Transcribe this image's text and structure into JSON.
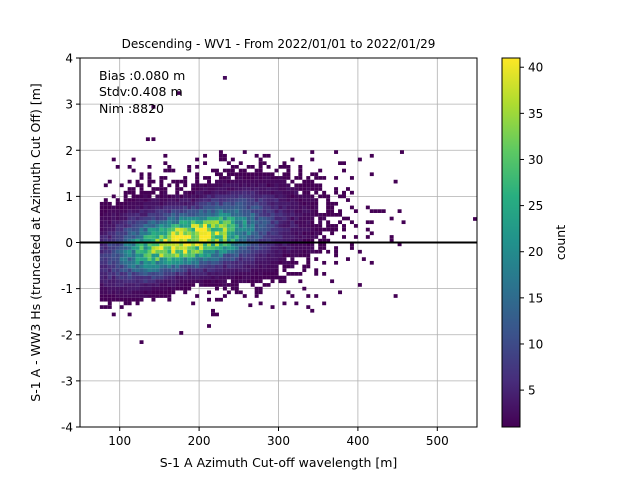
{
  "chart_data": {
    "type": "heatmap",
    "title": "Descending - WV1 - From 2022/01/01 to 2022/01/29",
    "xlabel": "S-1 A Azimuth Cut-off wavelength [m]",
    "ylabel": "S-1 A - WW3 Hs (truncated at Azimuth Cut Off) [m]",
    "xlim": [
      50,
      550
    ],
    "ylim": [
      -4,
      4
    ],
    "xticks": [
      "100",
      "200",
      "300",
      "400",
      "500"
    ],
    "yticks": [
      "-4",
      "-3",
      "-2",
      "-1",
      "0",
      "1",
      "2",
      "3",
      "4"
    ],
    "grid": true,
    "reference_line_y": 0,
    "stats": [
      "Bias :0.080 m",
      "Stdv:0.408 m",
      "Nim :8820"
    ],
    "colorbar": {
      "label": "count",
      "range": [
        1,
        41
      ],
      "ticks": [
        "5",
        "10",
        "15",
        "20",
        "25",
        "30",
        "35",
        "40"
      ],
      "colormap": "viridis"
    },
    "bins": {
      "x_bin_width_m": 5,
      "y_bin_width_m": 0.08,
      "peak": {
        "x": 185,
        "y": 0.05,
        "count": 41
      },
      "spread_x_m": 55,
      "spread_y_m": 0.45,
      "x_range": [
        75,
        460
      ],
      "y_range": [
        -1.6,
        2.0
      ],
      "outliers": [
        {
          "x": 230,
          "y": 3.53,
          "count": 2
        },
        {
          "x": 172,
          "y": 3.2,
          "count": 1
        },
        {
          "x": 140,
          "y": 2.9,
          "count": 1
        },
        {
          "x": 133,
          "y": 2.2,
          "count": 1
        },
        {
          "x": 140,
          "y": 2.2,
          "count": 1
        },
        {
          "x": 453,
          "y": 1.92,
          "count": 1
        },
        {
          "x": 545,
          "y": 0.47,
          "count": 1
        },
        {
          "x": 125,
          "y": -2.2,
          "count": 1
        },
        {
          "x": 175,
          "y": -2.0,
          "count": 1
        },
        {
          "x": 210,
          "y": -1.85,
          "count": 1
        },
        {
          "x": 262,
          "y": -1.4,
          "count": 1
        }
      ]
    }
  }
}
